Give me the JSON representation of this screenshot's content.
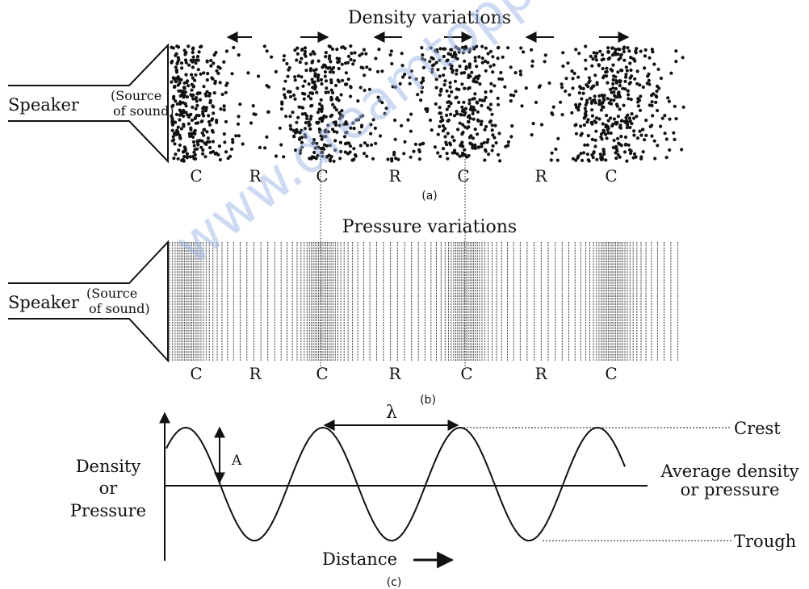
{
  "panel_a": {
    "title": "Density variations",
    "speaker_label": "Speaker",
    "source_line1": "(Source",
    "source_line2": "of sound)",
    "region_labels": [
      "C",
      "R",
      "C",
      "R",
      "C",
      "R",
      "C"
    ],
    "caption": "(a)"
  },
  "panel_b": {
    "title": "Pressure variations",
    "speaker_label": "Speaker",
    "source_line1": "(Source",
    "source_line2": "of sound)",
    "region_labels": [
      "C",
      "R",
      "C",
      "R",
      "C",
      "R",
      "C"
    ],
    "caption": "(b)"
  },
  "panel_c": {
    "y_label_line1": "Density",
    "y_label_line2": "or",
    "y_label_line3": "Pressure",
    "x_label": "Distance",
    "wavelength_symbol": "λ",
    "amplitude_symbol": "A",
    "crest_label": "Crest",
    "trough_label": "Trough",
    "average_label_line1": "Average density",
    "average_label_line2": "or pressure",
    "caption": "(c)"
  },
  "watermark": "www.dreamtopper.in"
}
